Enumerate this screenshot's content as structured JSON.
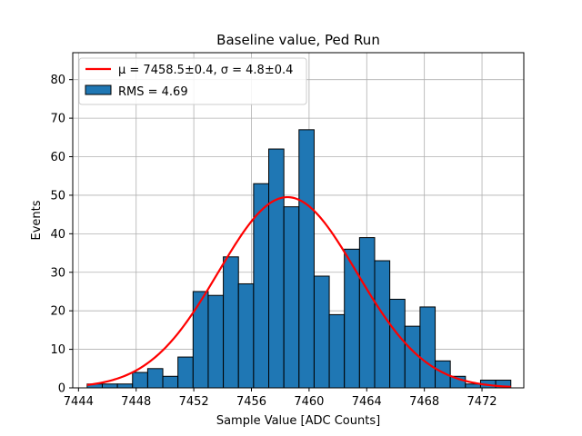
{
  "chart_data": {
    "type": "bar",
    "title": "Baseline value, Ped Run",
    "xlabel": "Sample Value [ADC Counts]",
    "ylabel": "Events",
    "xlim": [
      7443.6,
      7474.9
    ],
    "ylim": [
      0,
      87
    ],
    "xticks": [
      7444,
      7448,
      7452,
      7456,
      7460,
      7464,
      7468,
      7472
    ],
    "yticks": [
      0,
      10,
      20,
      30,
      40,
      50,
      60,
      70,
      80
    ],
    "grid": true,
    "legend_position": "upper-left",
    "bin_width": 1.05,
    "bin_start": 7444.6,
    "counts": [
      1,
      1,
      1,
      4,
      5,
      3,
      8,
      25,
      24,
      34,
      27,
      53,
      62,
      47,
      67,
      29,
      19,
      36,
      39,
      33,
      23,
      16,
      21,
      7,
      3,
      1,
      2,
      2
    ],
    "histogram": {
      "name": "RMS = 4.69",
      "color": "#1f77b4",
      "edgecolor": "#000000"
    },
    "fit": {
      "name": "μ = 7458.5±0.4, σ = 4.8±0.4",
      "type": "gaussian",
      "mu": 7458.5,
      "sigma": 4.8,
      "amplitude": 49.5,
      "x_range": [
        7444.6,
        7474
      ],
      "color": "#ff0000"
    },
    "legend": [
      {
        "label": "μ = 7458.5±0.4, σ = 4.8±0.4",
        "kind": "line",
        "color": "#ff0000"
      },
      {
        "label": "RMS = 4.69",
        "kind": "patch",
        "color": "#1f77b4"
      }
    ]
  }
}
